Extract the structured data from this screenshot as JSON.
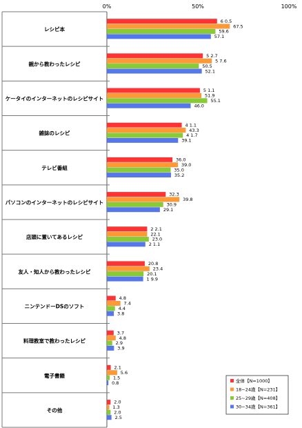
{
  "chart_data": {
    "type": "bar",
    "orientation": "horizontal",
    "categories": [
      "レシピ本",
      "親から教わったレシピ",
      "ケータイのインターネットのレシピサイト",
      "雑誌のレシピ",
      "テレビ番組",
      "パソコンのインターネットのレシピサイト",
      "店頭に置いてあるレシピ",
      "友人・知人から教わったレシピ",
      "ニンテンドーDSのソフト",
      "料理教室で教わったレシピ",
      "電子書籍",
      "その他"
    ],
    "series": [
      {
        "name": "全体【N=1000】",
        "color": "#ff3333",
        "values": [
          60.5,
          52.7,
          51.1,
          41.1,
          36.0,
          32.3,
          22.1,
          20.8,
          4.8,
          3.7,
          2.1,
          2.0
        ],
        "labels": [
          "6 0.5",
          "5 2.7",
          "5 1.1",
          "4 1.1",
          "36.0",
          "32.3",
          "2 2.1",
          "20.8",
          "4.8",
          "3.7",
          "2.1",
          "2.0"
        ]
      },
      {
        "name": "18~24歳【N=231】",
        "color": "#ff9933",
        "values": [
          67.5,
          57.6,
          51.9,
          43.3,
          39.0,
          39.8,
          22.1,
          23.4,
          7.4,
          4.8,
          5.6,
          1.3
        ],
        "labels": [
          "67.5",
          "5 7.6",
          "51.9",
          "43.3",
          "39.0",
          "39.8",
          "22.1",
          "23.4",
          "7.4",
          "4.8",
          "5.6",
          "1.3"
        ]
      },
      {
        "name": "25~29歳【N=408】",
        "color": "#88cc33",
        "values": [
          59.6,
          50.5,
          55.1,
          41.7,
          35.0,
          30.9,
          23.0,
          20.1,
          4.4,
          2.9,
          1.5,
          2.0
        ],
        "labels": [
          "59.6",
          "50.5",
          "55.1",
          "4 1.7",
          "35.0",
          "30.9",
          "23.0",
          "20.1",
          "4.4",
          "2.9",
          "1.5",
          "2.0"
        ]
      },
      {
        "name": "30~34歳【N=361】",
        "color": "#5577ee",
        "values": [
          57.1,
          52.1,
          46.0,
          39.1,
          35.2,
          29.1,
          21.1,
          19.9,
          3.8,
          3.9,
          0.8,
          2.5
        ],
        "labels": [
          "57.1",
          "52.1",
          "46.0",
          "39.1",
          "35.2",
          "29.1",
          "2 1.1",
          "1 9.9",
          "3.8",
          "3.9",
          "0.8",
          "2.5"
        ]
      }
    ],
    "xlim": [
      0,
      100
    ],
    "ticks": [
      "0%",
      "50%",
      "100%"
    ],
    "tick_values": [
      0,
      50,
      100
    ],
    "grid": false,
    "legend_position": "bottom-right"
  }
}
